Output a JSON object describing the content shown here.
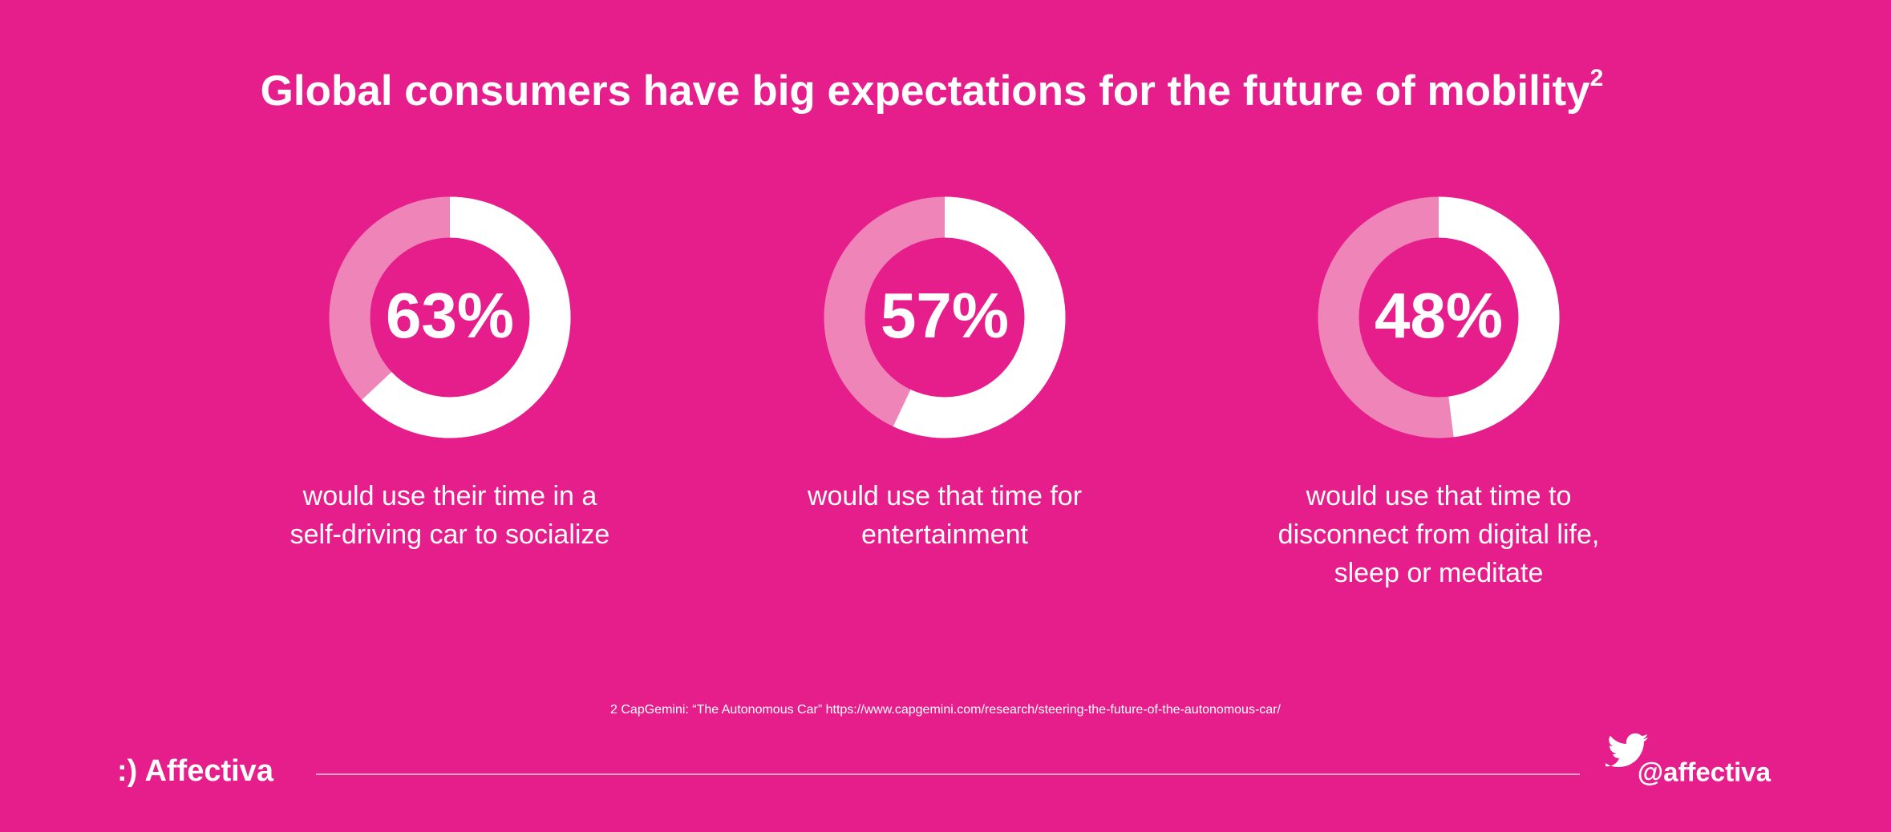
{
  "title": "Global consumers have big expectations for the future of mobility",
  "title_note": "2",
  "chart_data": [
    {
      "type": "donut",
      "values": [
        63
      ],
      "value_labels": [
        "63%"
      ],
      "color": "#ffffff",
      "track_color": "#ee84b7",
      "caption": [
        "would use their time in a",
        "self-driving car to socialize"
      ]
    },
    {
      "type": "donut",
      "values": [
        57
      ],
      "value_labels": [
        "57%"
      ],
      "color": "#ffffff",
      "track_color": "#ee84b7",
      "caption": [
        "would use that time for",
        "entertainment"
      ]
    },
    {
      "type": "donut",
      "values": [
        48
      ],
      "value_labels": [
        "48%"
      ],
      "color": "#ffffff",
      "track_color": "#ee84b7",
      "caption": [
        "would use that time to",
        "disconnect from digital life,",
        "sleep or meditate"
      ]
    }
  ],
  "footnote": "2 CapGemini: “The Autonomous Car” https://www.capgemini.com/research/steering-the-future-of-the-autonomous-car/",
  "footer": {
    "brand": ":) Affectiva",
    "handle": "@affectiva"
  }
}
